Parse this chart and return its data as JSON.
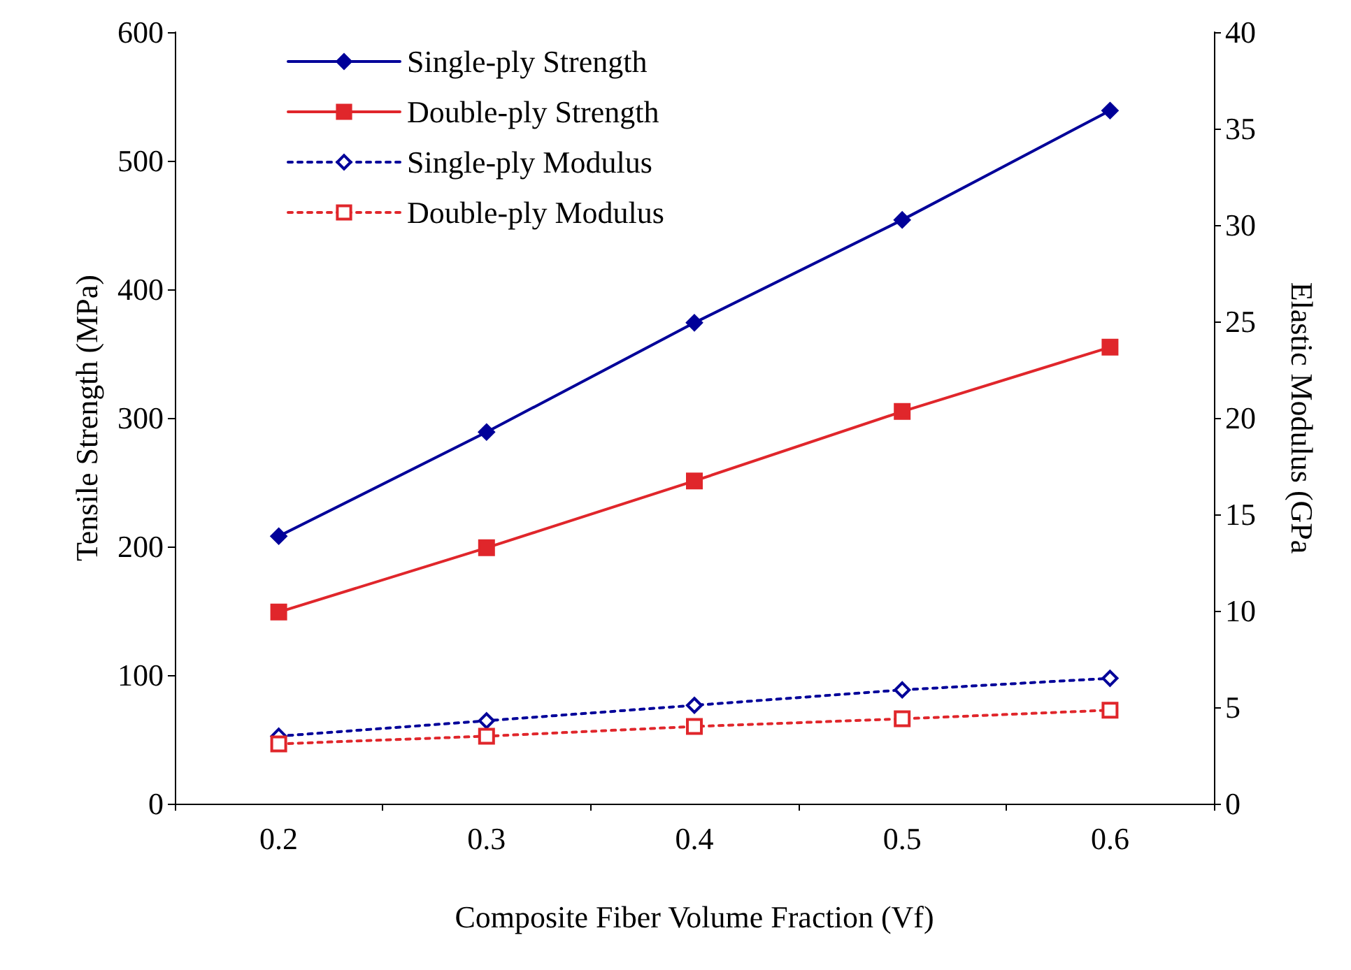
{
  "chart_data": {
    "type": "line",
    "xlabel": "Composite Fiber Volume Fraction (Vf)",
    "ylabel": "Tensile Strength (MPa)",
    "y2label": "Elastic Modulus (GPa",
    "categories": [
      "0.2",
      "0.3",
      "0.4",
      "0.5",
      "0.6"
    ],
    "series": [
      {
        "name": "Single-ply Strength",
        "color": "#000099",
        "marker": "diamond",
        "line_style": "solid",
        "values": [
          208,
          289,
          374,
          454,
          539
        ]
      },
      {
        "name": "Double-ply Strength",
        "color": "#e0262b",
        "marker": "square",
        "line_style": "solid",
        "values": [
          149,
          199,
          251,
          305,
          355
        ]
      },
      {
        "name": "Single-ply Modulus",
        "color": "#000099",
        "marker": "diamond",
        "line_style": "dotted",
        "axis": "y2",
        "values": [
          3.5,
          4.3,
          5.1,
          5.9,
          6.5
        ]
      },
      {
        "name": "Double-ply Modulus",
        "color": "#e0262b",
        "marker": "square",
        "line_style": "dotted",
        "axis": "y2",
        "values": [
          3.1,
          3.5,
          4.0,
          4.4,
          4.85
        ]
      }
    ],
    "ylim": [
      0,
      600
    ],
    "yticks": [
      0,
      100,
      200,
      300,
      400,
      500,
      600
    ],
    "y2lim": [
      0,
      40
    ],
    "y2ticks": [
      0,
      5,
      10,
      15,
      20,
      25,
      30,
      35,
      40
    ],
    "grid": false,
    "legend": "top left"
  }
}
